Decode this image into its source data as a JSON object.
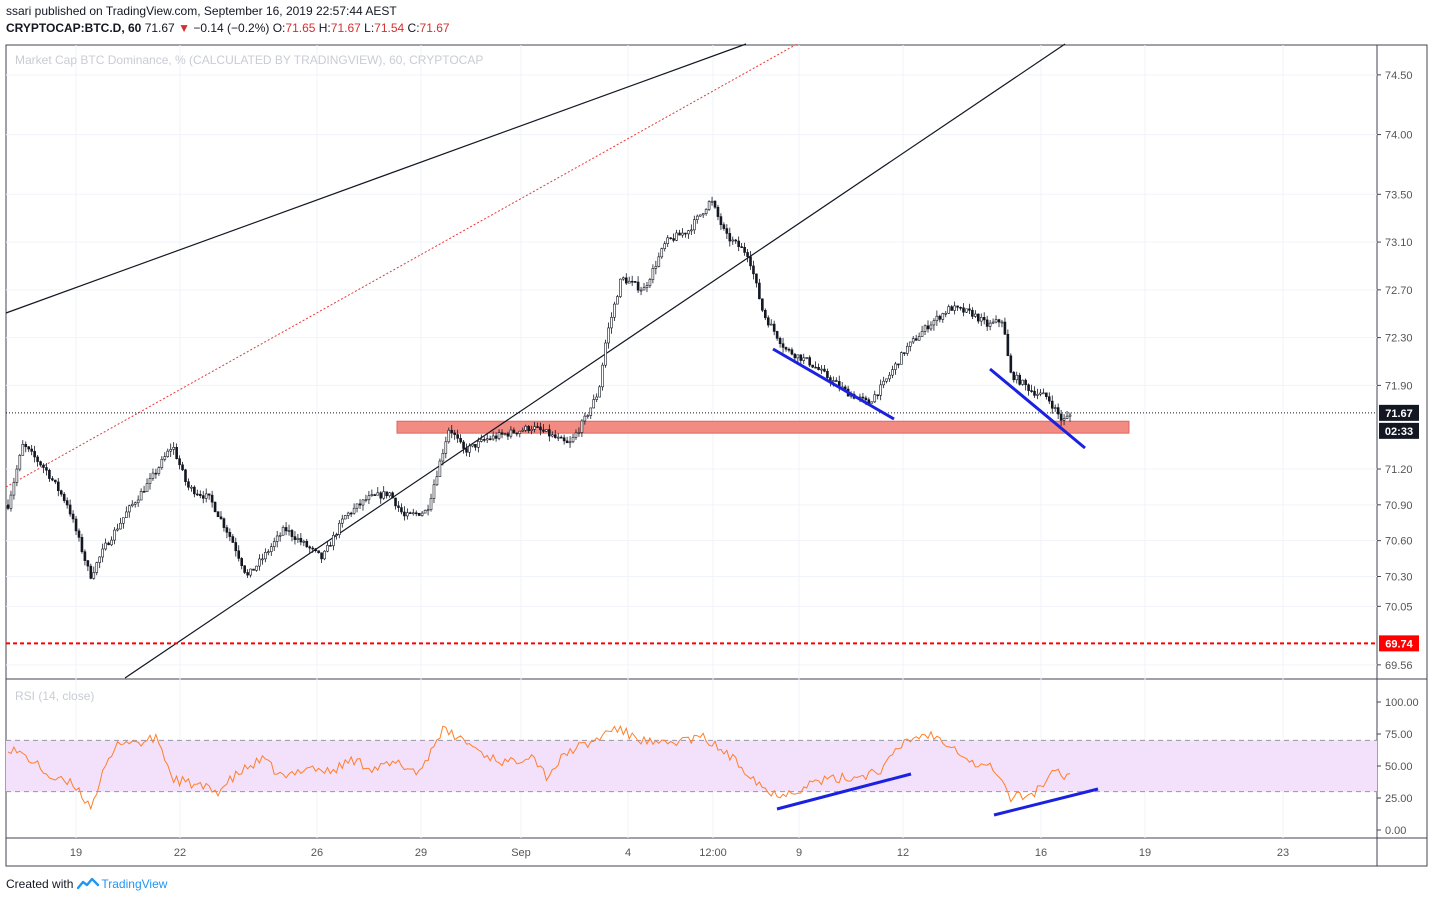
{
  "header": {
    "publisher_line": "ssari published on TradingView.com, September 16, 2019 22:57:44 AEST",
    "symbol": "CRYPTOCAP:BTC.D, 60",
    "last": "71.67",
    "change": "−0.14 (−0.2%)",
    "open_label": "O:",
    "open": "71.65",
    "high_label": "H:",
    "high": "71.67",
    "low_label": "L:",
    "low": "71.54",
    "close_label": "C:",
    "close": "71.67",
    "down_arrow": "▼"
  },
  "footer": {
    "created_with": "Created with",
    "brand": "TradingView",
    "logo_icon": "tradingview-logo-icon"
  },
  "colors": {
    "up": "#26a69a",
    "down": "#ef5350",
    "candle": "#131722",
    "rsi": "#ff7f2a",
    "rsi_band": "#f3e0fb",
    "support_zone": "#f28b82",
    "blue_line": "#1a22e0",
    "red_level": "#ff0000"
  },
  "chart_data": [
    {
      "type": "candlestick",
      "title": "Market Cap BTC Dominance, % (CALCULATED BY TRADINGVIEW), 60, CRYPTOCAP",
      "ylim": [
        69.45,
        74.75
      ],
      "y_ticks": [
        "74.50",
        "74.00",
        "73.50",
        "73.10",
        "72.70",
        "72.30",
        "71.90",
        "71.20",
        "70.90",
        "70.60",
        "70.30",
        "70.05",
        "69.56"
      ],
      "x_ticks": [
        "19",
        "22",
        "26",
        "29",
        "Sep",
        "4",
        "12:00",
        "9",
        "12",
        "16",
        "19",
        "23"
      ],
      "price_line": {
        "value": 71.67,
        "label": "71.67",
        "countdown": "02:33"
      },
      "red_level": {
        "value": 69.74,
        "label": "69.74"
      },
      "support_zone": {
        "low": 71.5,
        "high": 71.6
      },
      "path_points": [
        [
          0,
          70.9
        ],
        [
          2,
          71.4
        ],
        [
          5,
          71.2
        ],
        [
          8,
          70.9
        ],
        [
          11,
          70.3
        ],
        [
          13,
          70.55
        ],
        [
          16,
          70.85
        ],
        [
          19,
          71.1
        ],
        [
          22,
          71.4
        ],
        [
          24,
          71.05
        ],
        [
          27,
          70.95
        ],
        [
          30,
          70.6
        ],
        [
          32,
          70.3
        ],
        [
          34,
          70.45
        ],
        [
          37,
          70.7
        ],
        [
          40,
          70.55
        ],
        [
          42,
          70.45
        ],
        [
          45,
          70.8
        ],
        [
          48,
          70.95
        ],
        [
          51,
          71.0
        ],
        [
          53,
          70.8
        ],
        [
          56,
          70.85
        ],
        [
          59,
          71.55
        ],
        [
          61,
          71.35
        ],
        [
          64,
          71.45
        ],
        [
          67,
          71.5
        ],
        [
          70,
          71.55
        ],
        [
          72,
          71.5
        ],
        [
          75,
          71.4
        ],
        [
          77,
          71.6
        ],
        [
          79,
          71.85
        ],
        [
          80,
          72.3
        ],
        [
          82,
          72.8
        ],
        [
          85,
          72.7
        ],
        [
          88,
          73.1
        ],
        [
          91,
          73.2
        ],
        [
          94,
          73.45
        ],
        [
          96,
          73.15
        ],
        [
          99,
          73.0
        ],
        [
          101,
          72.5
        ],
        [
          104,
          72.2
        ],
        [
          107,
          72.1
        ],
        [
          110,
          71.95
        ],
        [
          112,
          71.85
        ],
        [
          115,
          71.75
        ],
        [
          117,
          71.9
        ],
        [
          120,
          72.2
        ],
        [
          123,
          72.4
        ],
        [
          126,
          72.55
        ],
        [
          129,
          72.5
        ],
        [
          131,
          72.4
        ],
        [
          133,
          72.45
        ],
        [
          134,
          72.0
        ],
        [
          137,
          71.85
        ],
        [
          139,
          71.8
        ],
        [
          141,
          71.6
        ],
        [
          142,
          71.65
        ]
      ]
    },
    {
      "type": "line",
      "title": "RSI (14, close)",
      "ylim": [
        0,
        100
      ],
      "y_ticks": [
        "100.00",
        "75.00",
        "50.00",
        "25.00",
        "0.00"
      ],
      "band": [
        30,
        70
      ],
      "path_points": [
        [
          0,
          65
        ],
        [
          3,
          55
        ],
        [
          6,
          40
        ],
        [
          9,
          35
        ],
        [
          11,
          18
        ],
        [
          13,
          48
        ],
        [
          15,
          70
        ],
        [
          18,
          68
        ],
        [
          20,
          72
        ],
        [
          22,
          40
        ],
        [
          25,
          35
        ],
        [
          28,
          30
        ],
        [
          31,
          45
        ],
        [
          34,
          55
        ],
        [
          37,
          40
        ],
        [
          40,
          50
        ],
        [
          43,
          45
        ],
        [
          46,
          55
        ],
        [
          49,
          48
        ],
        [
          52,
          52
        ],
        [
          55,
          45
        ],
        [
          58,
          78
        ],
        [
          61,
          70
        ],
        [
          64,
          58
        ],
        [
          67,
          52
        ],
        [
          70,
          60
        ],
        [
          72,
          42
        ],
        [
          75,
          62
        ],
        [
          78,
          68
        ],
        [
          81,
          80
        ],
        [
          84,
          72
        ],
        [
          87,
          66
        ],
        [
          90,
          70
        ],
        [
          93,
          72
        ],
        [
          96,
          60
        ],
        [
          99,
          45
        ],
        [
          102,
          28
        ],
        [
          105,
          30
        ],
        [
          108,
          38
        ],
        [
          111,
          40
        ],
        [
          114,
          42
        ],
        [
          117,
          48
        ],
        [
          120,
          70
        ],
        [
          123,
          75
        ],
        [
          126,
          68
        ],
        [
          129,
          52
        ],
        [
          132,
          48
        ],
        [
          134,
          25
        ],
        [
          137,
          28
        ],
        [
          140,
          45
        ],
        [
          142,
          42
        ]
      ]
    }
  ]
}
